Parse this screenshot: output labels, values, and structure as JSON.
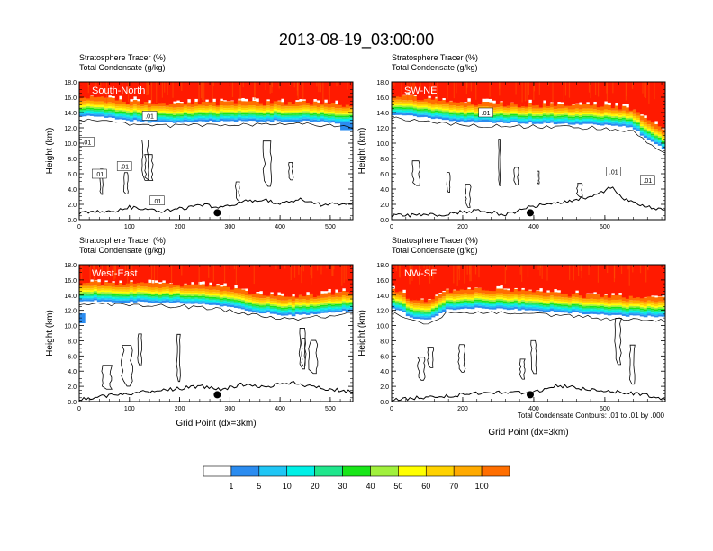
{
  "title": "2013-08-19_03:00:00",
  "colors": {
    "levels": [
      "#ffffff",
      "#2b8cf0",
      "#1fc6f5",
      "#00f0e6",
      "#1fe68c",
      "#19e619",
      "#a0f03c",
      "#ffff00",
      "#ffd200",
      "#ffaa00",
      "#ff6e00",
      "#ff1a00"
    ],
    "line": "#000000"
  },
  "colorbar": {
    "labels": [
      "1",
      "5",
      "10",
      "20",
      "30",
      "40",
      "50",
      "60",
      "70",
      "100"
    ]
  },
  "footnote": "Total Condensate Contours: .01 to .01 by .000",
  "chart_data": [
    {
      "type": "heatmap",
      "panel_label": "South-North",
      "title_line1": "Stratosphere Tracer   (%)",
      "title_line2": "Total Condensate   (g/kg)",
      "ylabel": "Height (km)",
      "xlabel": "",
      "xlim": [
        0,
        545
      ],
      "ylim": [
        0,
        18
      ],
      "xticks": [
        "0",
        "100",
        "200",
        "300",
        "400",
        "500"
      ],
      "xtick_values": [
        0,
        100,
        200,
        300,
        400,
        500
      ],
      "yticks": [
        "0.0",
        "2.0",
        "4.0",
        "6.0",
        "8.0",
        "10.0",
        "12.0",
        "14.0",
        "16.0",
        "18.0"
      ],
      "marker_x": 275,
      "tracer_base_km": [
        [
          0,
          13.6
        ],
        [
          60,
          13.3
        ],
        [
          100,
          13.0
        ],
        [
          150,
          12.7
        ],
        [
          250,
          12.8
        ],
        [
          350,
          12.9
        ],
        [
          450,
          12.9
        ],
        [
          545,
          12.5
        ]
      ],
      "blue_patches": [
        [
          0,
          9.7,
          11.4,
          10.0
        ],
        [
          520,
          11.7,
          545,
          12.6
        ]
      ],
      "condensate_labels": [
        [
          140,
          13.6,
          ".01"
        ],
        [
          15,
          10.2,
          ".01"
        ],
        [
          40,
          6.0,
          ".01"
        ],
        [
          90,
          7.0,
          ".01"
        ],
        [
          155,
          2.5,
          ".01"
        ]
      ],
      "terrain_km": [
        [
          0,
          0.9
        ],
        [
          40,
          1.1
        ],
        [
          70,
          1.0
        ],
        [
          100,
          1.6
        ],
        [
          140,
          1.3
        ],
        [
          160,
          1.0
        ],
        [
          220,
          1.6
        ],
        [
          250,
          1.9
        ],
        [
          280,
          1.5
        ],
        [
          320,
          2.3
        ],
        [
          360,
          2.6
        ],
        [
          400,
          2.2
        ],
        [
          440,
          2.6
        ],
        [
          480,
          2.0
        ],
        [
          545,
          2.1
        ]
      ]
    },
    {
      "type": "heatmap",
      "panel_label": "SW-NE",
      "title_line1": "Stratosphere Tracer   (%)",
      "title_line2": "Total Condensate   (g/kg)",
      "ylabel": "Height (km)",
      "xlabel": "",
      "xlim": [
        0,
        770
      ],
      "ylim": [
        0,
        18
      ],
      "xticks": [
        "0",
        "200",
        "400",
        "600"
      ],
      "xtick_values": [
        0,
        200,
        400,
        600
      ],
      "yticks": [
        "0.0",
        "2.0",
        "4.0",
        "6.0",
        "8.0",
        "10.0",
        "12.0",
        "14.0",
        "16.0",
        "18.0"
      ],
      "marker_x": 390,
      "tracer_base_km": [
        [
          0,
          13.8
        ],
        [
          100,
          13.3
        ],
        [
          200,
          12.8
        ],
        [
          300,
          12.7
        ],
        [
          400,
          12.6
        ],
        [
          500,
          12.5
        ],
        [
          600,
          12.4
        ],
        [
          680,
          12.0
        ],
        [
          720,
          10.5
        ],
        [
          770,
          9.2
        ]
      ],
      "blue_patches": [],
      "condensate_labels": [
        [
          265,
          14.0,
          ".01"
        ],
        [
          625,
          6.3,
          ".01"
        ],
        [
          720,
          5.2,
          ".01"
        ]
      ],
      "terrain_km": [
        [
          0,
          0.5
        ],
        [
          150,
          0.7
        ],
        [
          250,
          1.3
        ],
        [
          320,
          0.6
        ],
        [
          400,
          1.8
        ],
        [
          480,
          2.3
        ],
        [
          560,
          3.0
        ],
        [
          620,
          4.2
        ],
        [
          660,
          2.5
        ],
        [
          720,
          1.7
        ],
        [
          770,
          1.2
        ]
      ]
    },
    {
      "type": "heatmap",
      "panel_label": "West-East",
      "title_line1": "Stratosphere Tracer   (%)",
      "title_line2": "Total Condensate   (g/kg)",
      "ylabel": "Height (km)",
      "xlabel": "Grid Point (dx=3km)",
      "xlim": [
        0,
        545
      ],
      "ylim": [
        0,
        18
      ],
      "xticks": [
        "0",
        "100",
        "200",
        "300",
        "400",
        "500"
      ],
      "xtick_values": [
        0,
        100,
        200,
        300,
        400,
        500
      ],
      "yticks": [
        "0.0",
        "2.0",
        "4.0",
        "6.0",
        "8.0",
        "10.0",
        "12.0",
        "14.0",
        "16.0",
        "18.0"
      ],
      "marker_x": 275,
      "tracer_base_km": [
        [
          0,
          13.3
        ],
        [
          100,
          13.1
        ],
        [
          200,
          13.0
        ],
        [
          280,
          12.6
        ],
        [
          350,
          11.8
        ],
        [
          420,
          11.3
        ],
        [
          480,
          11.6
        ],
        [
          545,
          12.0
        ]
      ],
      "blue_patches": [
        [
          0,
          10.3,
          12,
          11.6
        ]
      ],
      "condensate_labels": [],
      "terrain_km": [
        [
          0,
          0.3
        ],
        [
          60,
          0.8
        ],
        [
          120,
          1.2
        ],
        [
          180,
          1.6
        ],
        [
          240,
          2.0
        ],
        [
          280,
          1.6
        ],
        [
          320,
          2.2
        ],
        [
          380,
          2.0
        ],
        [
          420,
          2.5
        ],
        [
          480,
          1.8
        ],
        [
          545,
          1.2
        ]
      ]
    },
    {
      "type": "heatmap",
      "panel_label": "NW-SE",
      "title_line1": "Stratosphere Tracer   (%)",
      "title_line2": "Total Condensate   (g/kg)",
      "ylabel": "Height (km)",
      "xlabel": "Grid Point (dx=3km)",
      "xlim": [
        0,
        770
      ],
      "ylim": [
        0,
        18
      ],
      "xticks": [
        "0",
        "200",
        "400",
        "600"
      ],
      "xtick_values": [
        0,
        200,
        400,
        600
      ],
      "yticks": [
        "0.0",
        "2.0",
        "4.0",
        "6.0",
        "8.0",
        "10.0",
        "12.0",
        "14.0",
        "16.0",
        "18.0"
      ],
      "marker_x": 390,
      "tracer_base_km": [
        [
          0,
          12.5
        ],
        [
          60,
          11.0
        ],
        [
          110,
          10.8
        ],
        [
          150,
          12.0
        ],
        [
          200,
          12.3
        ],
        [
          300,
          12.2
        ],
        [
          400,
          12.0
        ],
        [
          500,
          11.7
        ],
        [
          600,
          11.4
        ],
        [
          700,
          11.2
        ],
        [
          770,
          11.2
        ]
      ],
      "blue_patches": [],
      "condensate_labels": [],
      "terrain_km": [
        [
          0,
          0.2
        ],
        [
          100,
          0.6
        ],
        [
          200,
          0.9
        ],
        [
          300,
          1.2
        ],
        [
          400,
          1.2
        ],
        [
          470,
          2.1
        ],
        [
          550,
          1.6
        ],
        [
          620,
          1.3
        ],
        [
          700,
          1.0
        ],
        [
          770,
          0.3
        ]
      ]
    }
  ]
}
